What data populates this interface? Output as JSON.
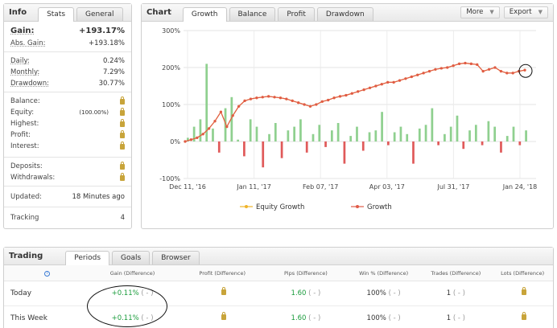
{
  "info": {
    "title": "Info",
    "tabs": [
      "Stats",
      "General"
    ],
    "gain_label": "Gain:",
    "gain_value": "+193.17%",
    "abs_gain_label": "Abs. Gain:",
    "abs_gain_value": "+193.18%",
    "daily_label": "Daily:",
    "daily_value": "0.24%",
    "monthly_label": "Monthly:",
    "monthly_value": "7.29%",
    "drawdown_label": "Drawdown:",
    "drawdown_value": "30.77%",
    "balance_label": "Balance:",
    "equity_label": "Equity:",
    "equity_value": "(100.00%)",
    "highest_label": "Highest:",
    "profit_label": "Profit:",
    "interest_label": "Interest:",
    "deposits_label": "Deposits:",
    "withdrawals_label": "Withdrawals:",
    "updated_label": "Updated:",
    "updated_value": "18 Minutes ago",
    "tracking_label": "Tracking",
    "tracking_value": "4"
  },
  "chart_panel": {
    "title": "Chart",
    "tabs": [
      "Growth",
      "Balance",
      "Profit",
      "Drawdown"
    ],
    "more_label": "More",
    "export_label": "Export"
  },
  "chart_data": {
    "type": "line",
    "ylim": [
      -100,
      300
    ],
    "y_ticks": [
      "300%",
      "200%",
      "100%",
      "0%",
      "-100%"
    ],
    "x_ticks": [
      "Dec 11, '16",
      "Jan 11, '17",
      "Feb 07, '17",
      "Apr 03, '17",
      "Jul 31, '17",
      "Jan 24, '18"
    ],
    "legend_position": "bottom",
    "series": [
      {
        "name": "Equity Growth",
        "color": "#f0b429",
        "values": [
          0,
          5,
          10,
          20,
          35,
          55,
          80,
          40,
          70,
          95,
          110,
          115,
          118,
          120,
          122,
          120,
          118,
          115,
          110,
          105,
          100,
          95,
          100,
          108,
          112,
          118,
          122,
          125,
          130,
          135,
          140,
          145,
          150,
          155,
          160,
          160,
          165,
          170,
          175,
          180,
          185,
          190,
          195,
          198,
          200,
          205,
          210,
          212,
          210,
          208,
          190,
          195,
          200,
          190,
          185,
          185,
          190,
          193
        ]
      },
      {
        "name": "Growth",
        "color": "#e05a47",
        "values": [
          0,
          5,
          10,
          20,
          35,
          55,
          80,
          40,
          70,
          95,
          110,
          115,
          118,
          120,
          122,
          120,
          118,
          115,
          110,
          105,
          100,
          95,
          100,
          108,
          112,
          118,
          122,
          125,
          130,
          135,
          140,
          145,
          150,
          155,
          160,
          160,
          165,
          170,
          175,
          180,
          185,
          190,
          195,
          198,
          200,
          205,
          210,
          212,
          210,
          208,
          190,
          195,
          200,
          190,
          185,
          185,
          190,
          193
        ]
      }
    ],
    "bars": {
      "pos_color": "#8fd08f",
      "neg_color": "#e05a5a",
      "values": [
        10,
        40,
        60,
        210,
        35,
        -30,
        90,
        120,
        5,
        -40,
        60,
        40,
        -70,
        20,
        50,
        -45,
        30,
        40,
        60,
        -30,
        20,
        45,
        -15,
        30,
        50,
        -60,
        15,
        40,
        -25,
        25,
        30,
        80,
        -10,
        25,
        40,
        20,
        -60,
        35,
        45,
        90,
        -10,
        20,
        40,
        70,
        -20,
        30,
        45,
        -10,
        55,
        40,
        -30,
        15,
        40,
        -10,
        30
      ]
    }
  },
  "trading": {
    "title": "Trading",
    "tabs": [
      "Periods",
      "Goals",
      "Browser"
    ],
    "columns": [
      "Gain (Difference)",
      "Profit (Difference)",
      "Pips (Difference)",
      "Win % (Difference)",
      "Trades (Difference)",
      "Lots (Difference)"
    ],
    "rows": [
      {
        "period": "Today",
        "gain": "+0.11%",
        "gain_diff": "( - )",
        "pips": "1.60",
        "pips_diff": "( - )",
        "win": "100%",
        "win_diff": "( - )",
        "trades": "1",
        "trades_diff": "( - )"
      },
      {
        "period": "This Week",
        "gain": "+0.11%",
        "gain_diff": "( - )",
        "pips": "1.60",
        "pips_diff": "( - )",
        "win": "100%",
        "win_diff": "( - )",
        "trades": "1",
        "trades_diff": "( - )"
      }
    ]
  }
}
